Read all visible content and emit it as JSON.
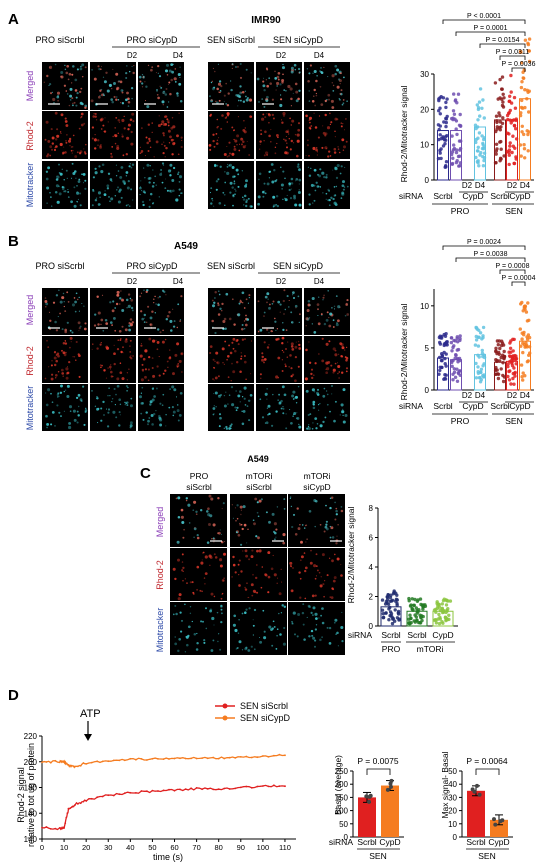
{
  "colors": {
    "pro_scrbl": "#2b2a8c",
    "pro_cypd": "#6f4fb0",
    "pro_cypd_d4": "#62c3e0",
    "sen_scrbl": "#8a1b1b",
    "sen_cypd_d2": "#e02020",
    "sen_cypd_d4": "#f57c20",
    "mtor_scrbl": "#237a23",
    "mtor_cypd": "#8cc63f",
    "c_pro": "#1f2a6e",
    "merged_label": "#8b3fb8",
    "rhod_label": "#c0282e",
    "mito_label": "#2d4aa8"
  },
  "panelA": {
    "letter": "A",
    "cell_line": "IMR90",
    "pro_siscrbl": "PRO siScrbl",
    "pro_sicypd": "PRO siCypD",
    "sen_siscrbl": "SEN siScrbl",
    "sen_sicypd": "SEN siCypD",
    "d2": "D2",
    "d4": "D4",
    "rows": [
      "Merged",
      "Rhod-2",
      "Mitotracker"
    ],
    "ylabel": "Rhod-2/Mitotracker signal",
    "yticks": [
      "0",
      "10",
      "20",
      "30"
    ],
    "pvalues": [
      "P < 0.0001",
      "P = 0.0001",
      "P = 0.0154",
      "P = 0.0311",
      "P = 0.0036"
    ],
    "sirna": "siRNA",
    "xl_scrbl": "Scrbl",
    "xl_cypd": "CypD",
    "xl_d2": "D2",
    "xl_d4": "D4",
    "grp_pro": "PRO",
    "grp_sen": "SEN"
  },
  "panelB": {
    "letter": "B",
    "cell_line": "A549",
    "pro_siscrbl": "PRO siScrbl",
    "pro_sicypd": "PRO siCypD",
    "sen_siscrbl": "SEN siScrbl",
    "sen_sicypd": "SEN siCypD",
    "d2": "D2",
    "d4": "D4",
    "rows": [
      "Merged",
      "Rhod-2",
      "Mitotracker"
    ],
    "ylabel": "Rhod-2/Mitotracker signal",
    "yticks": [
      "0",
      "5",
      "10"
    ],
    "pvalues": [
      "P = 0.0024",
      "P = 0.0038",
      "P = 0.0008",
      "P = 0.0004"
    ],
    "sirna": "siRNA",
    "xl_scrbl": "Scrbl",
    "xl_cypd": "CypD",
    "xl_d2": "D2",
    "xl_d4": "D4",
    "grp_pro": "PRO",
    "grp_sen": "SEN"
  },
  "panelC": {
    "letter": "C",
    "cell_line": "A549",
    "col1a": "PRO",
    "col1b": "siScrbl",
    "col2a": "mTORi",
    "col2b": "siScrbl",
    "col3a": "mTORi",
    "col3b": "siCypD",
    "rows": [
      "Merged",
      "Rhod-2",
      "Mitotracker"
    ],
    "ylabel": "Rhod-2/Mitotracker signal",
    "yticks": [
      "0",
      "2",
      "4",
      "6",
      "8"
    ],
    "sirna": "siRNA",
    "xl1": "Scrbl",
    "xl2": "Scrbl",
    "xl3": "CypD",
    "grp_pro": "PRO",
    "grp_mtor": "mTORi"
  },
  "panelD": {
    "letter": "D",
    "atp": "ATP",
    "legend_scrbl": "SEN siScrbl",
    "legend_cypd": "SEN siCypD",
    "ylabel1": "Rhod-2 signal",
    "ylabel2": "relative to tot ug of protein",
    "xlabel": "time (s)",
    "yticks": [
      "140",
      "160",
      "180",
      "200",
      "220"
    ],
    "xticks": [
      "0",
      "10",
      "20",
      "30",
      "40",
      "50",
      "60",
      "70",
      "80",
      "90",
      "100",
      "110"
    ],
    "basal_ylabel": "Basal (average)",
    "basal_yticks": [
      "0",
      "50",
      "100",
      "150",
      "200",
      "250"
    ],
    "basal_p": "P = 0.0075",
    "max_ylabel": "Max signal- Basal",
    "max_yticks": [
      "0",
      "10",
      "20",
      "30",
      "40",
      "50"
    ],
    "max_p": "P = 0.0064",
    "sirna": "siRNA",
    "xl_scrbl": "Scrbl",
    "xl_cypd": "CypD",
    "grp_sen": "SEN"
  },
  "chart_data": [
    {
      "type": "bar",
      "title": "IMR90",
      "ylabel": "Rhod-2/Mitotracker signal",
      "ylim": [
        0,
        30
      ],
      "categories": [
        "PRO Scrbl",
        "PRO CypD D2",
        "PRO CypD D4",
        "SEN Scrbl",
        "SEN CypD D2",
        "SEN CypD D4"
      ],
      "values": [
        14,
        14,
        15,
        17,
        17,
        23
      ]
    },
    {
      "type": "bar",
      "title": "A549",
      "ylabel": "Rhod-2/Mitotracker signal",
      "ylim": [
        0,
        12
      ],
      "categories": [
        "PRO Scrbl",
        "PRO CypD D2",
        "PRO CypD D4",
        "SEN Scrbl",
        "SEN CypD D2",
        "SEN CypD D4"
      ],
      "values": [
        3.8,
        3.6,
        4.2,
        3.3,
        3.4,
        5.8
      ]
    },
    {
      "type": "bar",
      "title": "A549",
      "ylabel": "Rhod-2/Mitotracker signal",
      "ylim": [
        0,
        8
      ],
      "categories": [
        "PRO Scrbl",
        "mTORi Scrbl",
        "mTORi CypD"
      ],
      "values": [
        1.3,
        1.0,
        1.0
      ]
    },
    {
      "type": "line",
      "xlabel": "time (s)",
      "ylabel": "Rhod-2 signal relative to tot ug of protein",
      "xlim": [
        0,
        115
      ],
      "ylim": [
        140,
        220
      ],
      "series": [
        {
          "name": "SEN siScrbl",
          "x": [
            0,
            8,
            10,
            12,
            15,
            20,
            30,
            40,
            50,
            60,
            70,
            80,
            90,
            100,
            110
          ],
          "y": [
            149,
            148,
            149,
            163,
            167,
            170,
            174,
            176,
            177,
            178,
            179,
            179,
            180,
            181,
            181
          ]
        },
        {
          "name": "SEN siCypD",
          "x": [
            0,
            8,
            10,
            12,
            15,
            20,
            30,
            40,
            50,
            60,
            70,
            80,
            90,
            100,
            110
          ],
          "y": [
            200,
            200,
            200,
            197,
            196,
            199,
            201,
            202,
            202,
            203,
            203,
            203,
            204,
            204,
            205
          ]
        }
      ]
    },
    {
      "type": "bar",
      "ylabel": "Basal (average)",
      "ylim": [
        0,
        250
      ],
      "categories": [
        "Scrbl",
        "CypD"
      ],
      "values": [
        150,
        195
      ]
    },
    {
      "type": "bar",
      "ylabel": "Max signal- Basal",
      "ylim": [
        0,
        50
      ],
      "categories": [
        "Scrbl",
        "CypD"
      ],
      "values": [
        35,
        13
      ]
    }
  ]
}
